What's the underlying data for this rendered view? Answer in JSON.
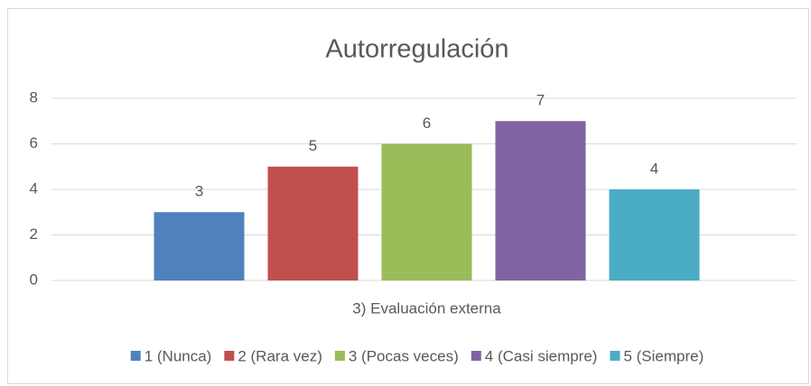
{
  "chart_data": {
    "type": "bar",
    "title": "Autorregulación",
    "categories": [
      "3) Evaluación externa"
    ],
    "series": [
      {
        "name": "1 (Nunca)",
        "color": "#4f81bd",
        "values": [
          3
        ]
      },
      {
        "name": "2 (Rara vez)",
        "color": "#c0504d",
        "values": [
          5
        ]
      },
      {
        "name": "3 (Pocas veces)",
        "color": "#9bbb59",
        "values": [
          6
        ]
      },
      {
        "name": "4 (Casi siempre)",
        "color": "#8064a2",
        "values": [
          7
        ]
      },
      {
        "name": "5 (Siempre)",
        "color": "#4bacc6",
        "values": [
          4
        ]
      }
    ],
    "ylim": [
      0,
      8
    ],
    "yticks": [
      0,
      2,
      4,
      6,
      8
    ],
    "grid": true,
    "legend": "bottom"
  }
}
